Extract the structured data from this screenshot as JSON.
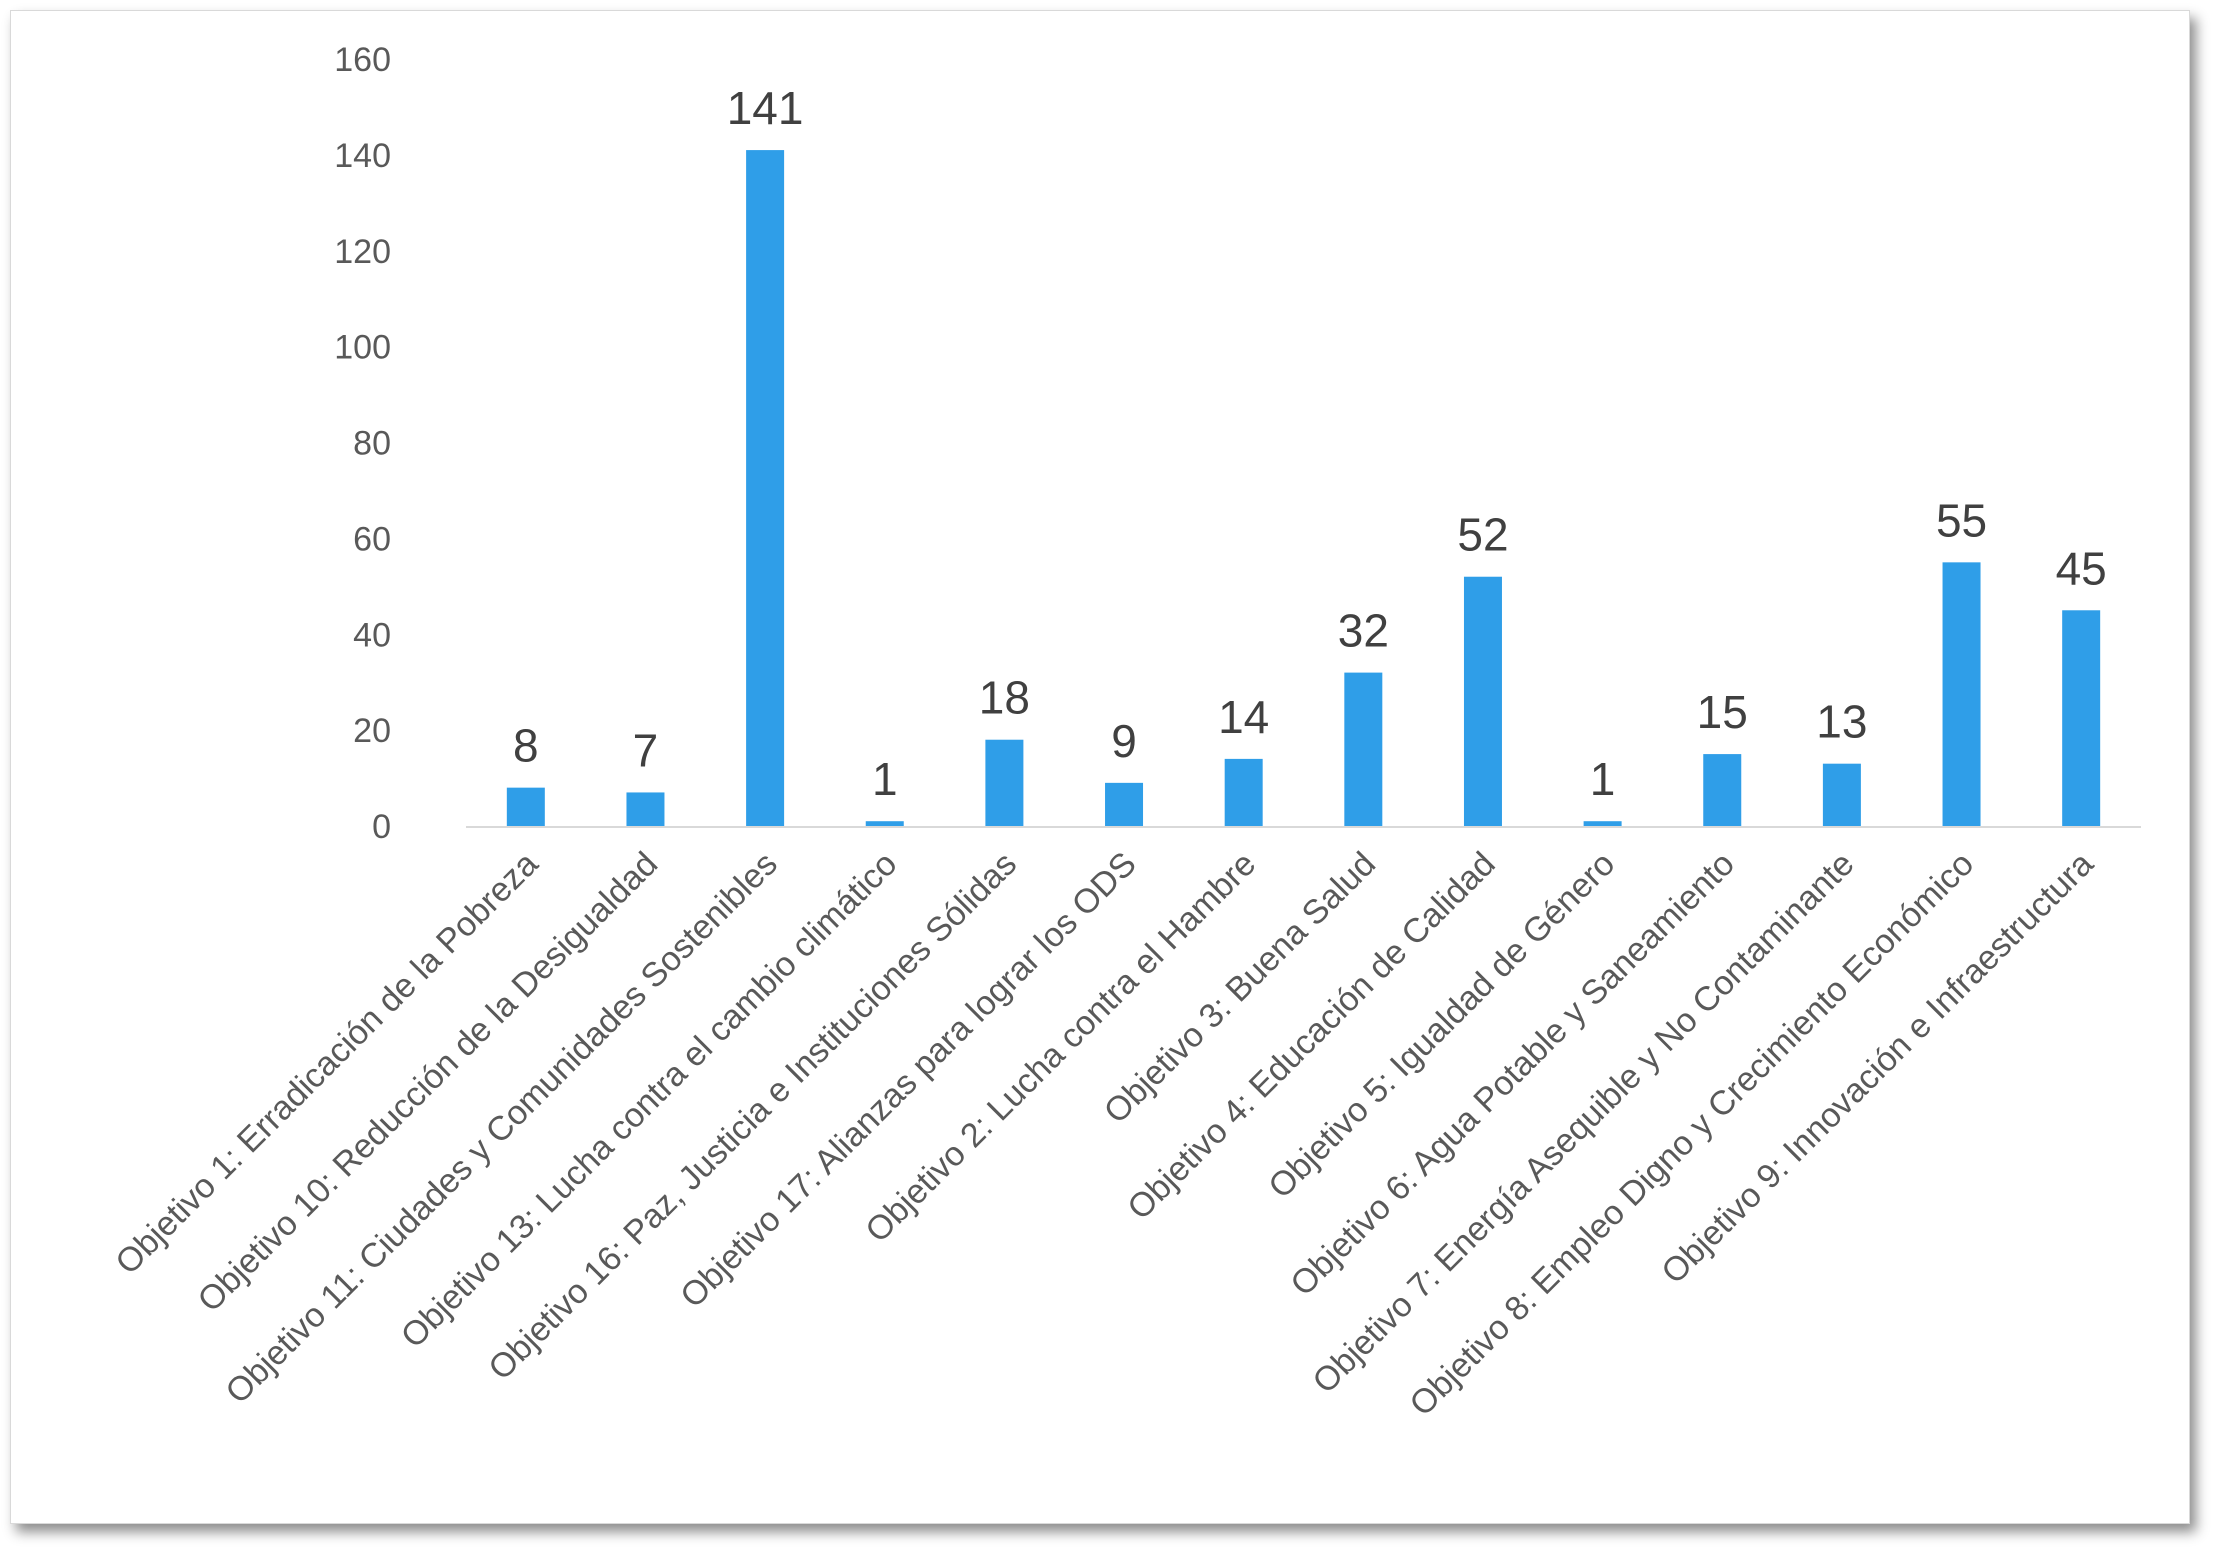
{
  "chart_data": {
    "type": "bar",
    "title": "",
    "xlabel": "",
    "ylabel": "",
    "ylim": [
      0,
      160
    ],
    "yticks": [
      0,
      20,
      40,
      60,
      80,
      100,
      120,
      140,
      160
    ],
    "grid": false,
    "legend": "none",
    "bar_color": "#2f9ee8",
    "categories": [
      "Objetivo 1: Erradicación de la Pobreza",
      "Objetivo 10: Reducción de la Desigualdad",
      "Objetivo 11: Ciudades y Comunidades Sostenibles",
      "Objetivo 13: Lucha contra el cambio climático",
      "Objetivo 16: Paz, Justicia e Instituciones Sólidas",
      "Objetivo 17: Alianzas para lograr los ODS",
      "Objetivo 2: Lucha contra el Hambre",
      "Objetivo 3: Buena Salud",
      "Objetivo 4: Educación de Calidad",
      "Objetivo 5: Igualdad de Género",
      "Objetivo 6: Agua Potable y Saneamiento",
      "Objetivo 7: Energía Asequible y No Contaminante",
      "Objetivo 8: Empleo Digno y Crecimiento Económico",
      "Objetivo 9: Innovación e Infraestructura"
    ],
    "values": [
      8,
      7,
      141,
      1,
      18,
      9,
      14,
      32,
      52,
      1,
      15,
      13,
      55,
      45
    ]
  }
}
